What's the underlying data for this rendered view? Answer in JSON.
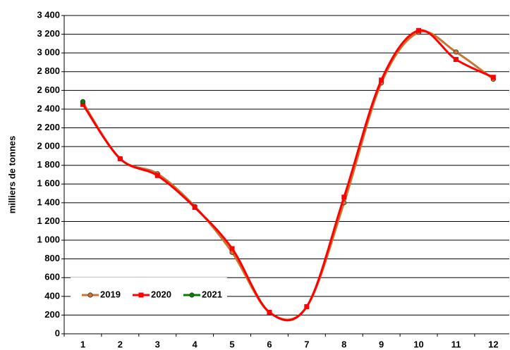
{
  "chart_data": {
    "type": "line",
    "y_label": "milliers de tonnes",
    "categories": [
      "1",
      "2",
      "3",
      "4",
      "5",
      "6",
      "7",
      "8",
      "9",
      "10",
      "11",
      "12"
    ],
    "series": [
      {
        "name": "2019",
        "color": "#c87530",
        "marker": "circle",
        "values": [
          2470,
          1870,
          1710,
          1360,
          870,
          230,
          290,
          1400,
          2680,
          3220,
          3010,
          2720
        ]
      },
      {
        "name": "2020",
        "color": "#ff0000",
        "marker": "square",
        "values": [
          2450,
          1870,
          1690,
          1350,
          910,
          230,
          290,
          1460,
          2710,
          3240,
          2930,
          2740
        ]
      },
      {
        "name": "2021",
        "color": "#008000",
        "marker": "circle",
        "values": [
          2480,
          null,
          null,
          null,
          null,
          null,
          null,
          null,
          null,
          null,
          null,
          null
        ]
      }
    ],
    "ylim": [
      0,
      3400
    ],
    "yticks": [
      0,
      200,
      400,
      600,
      800,
      {
        "value": 1000,
        "label": "1 000"
      },
      {
        "value": 1200,
        "label": "1 200"
      },
      {
        "value": 1400,
        "label": "1 400"
      },
      {
        "value": 1600,
        "label": "1 600"
      },
      {
        "value": 1800,
        "label": "1 800"
      },
      {
        "value": 2000,
        "label": "2 000"
      },
      {
        "value": 2200,
        "label": "2 200"
      },
      {
        "value": 2400,
        "label": "2 400"
      },
      {
        "value": 2600,
        "label": "2 600"
      },
      {
        "value": 2800,
        "label": "2 800"
      },
      {
        "value": 3000,
        "label": "3 000"
      },
      {
        "value": 3200,
        "label": "3 200"
      },
      {
        "value": 3400,
        "label": "3 400"
      }
    ],
    "grid": true,
    "smooth": true,
    "legend": "lower left"
  }
}
